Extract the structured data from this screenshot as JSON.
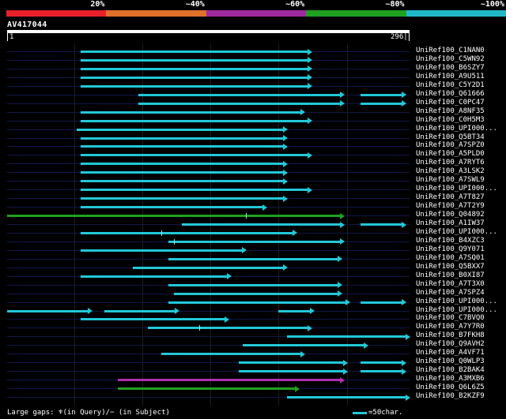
{
  "identity_scale": {
    "labels": [
      "20%",
      "~40%",
      "~60%",
      "~80%",
      "~100%"
    ],
    "colors": [
      "#e8202a",
      "#e0702a",
      "#a02aa0",
      "#20a020",
      "#20b8c8"
    ]
  },
  "query": {
    "name": "AV417044",
    "start_label": "1",
    "end_label": "296|"
  },
  "length_scale": {
    "min": 1,
    "max": 296
  },
  "hits": [
    {
      "name": "UniRef100_C1NAN0",
      "color": "cyan",
      "segments": [
        [
          55,
          224
        ]
      ],
      "ticks": []
    },
    {
      "name": "UniRef100_C5WN92",
      "color": "cyan",
      "segments": [
        [
          55,
          224
        ]
      ],
      "ticks": []
    },
    {
      "name": "UniRef100_B6SZY7",
      "color": "cyan",
      "segments": [
        [
          55,
          224
        ]
      ],
      "ticks": []
    },
    {
      "name": "UniRef100_A9U511",
      "color": "cyan",
      "segments": [
        [
          55,
          224
        ]
      ],
      "ticks": []
    },
    {
      "name": "UniRef100_C5Y2D1",
      "color": "cyan",
      "segments": [
        [
          55,
          224
        ]
      ],
      "ticks": []
    },
    {
      "name": "UniRef100_Q61666",
      "color": "cyan",
      "segments": [
        [
          97,
          248
        ],
        [
          260,
          293
        ]
      ],
      "ticks": []
    },
    {
      "name": "UniRef100_C0PC47",
      "color": "cyan",
      "segments": [
        [
          97,
          248
        ],
        [
          260,
          293
        ]
      ],
      "ticks": []
    },
    {
      "name": "UniRef100_A8NF35",
      "color": "cyan",
      "segments": [
        [
          55,
          219
        ]
      ],
      "ticks": []
    },
    {
      "name": "UniRef100_C0H5M3",
      "color": "cyan",
      "segments": [
        [
          55,
          224
        ]
      ],
      "ticks": []
    },
    {
      "name": "UniRef100_UPI000...",
      "color": "cyan",
      "segments": [
        [
          52,
          206
        ]
      ],
      "ticks": []
    },
    {
      "name": "UniRef100_Q5BT34",
      "color": "cyan",
      "segments": [
        [
          55,
          206
        ]
      ],
      "ticks": []
    },
    {
      "name": "UniRef100_A7SPZ0",
      "color": "cyan",
      "segments": [
        [
          55,
          206
        ]
      ],
      "ticks": []
    },
    {
      "name": "UniRef100_A5PLD0",
      "color": "cyan",
      "segments": [
        [
          55,
          224
        ]
      ],
      "ticks": []
    },
    {
      "name": "UniRef100_A7RYT6",
      "color": "cyan",
      "segments": [
        [
          55,
          206
        ]
      ],
      "ticks": []
    },
    {
      "name": "UniRef100_A3LSK2",
      "color": "cyan",
      "segments": [
        [
          55,
          206
        ]
      ],
      "ticks": []
    },
    {
      "name": "UniRef100_A7SWL9",
      "color": "cyan",
      "segments": [
        [
          55,
          206
        ]
      ],
      "ticks": []
    },
    {
      "name": "UniRef100_UPI000...",
      "color": "cyan",
      "segments": [
        [
          55,
          224
        ]
      ],
      "ticks": []
    },
    {
      "name": "UniRef100_A7T827",
      "color": "cyan",
      "segments": [
        [
          55,
          206
        ]
      ],
      "ticks": []
    },
    {
      "name": "UniRef100_A7T2Y9",
      "color": "cyan",
      "segments": [
        [
          55,
          191
        ]
      ],
      "ticks": []
    },
    {
      "name": "UniRef100_Q04892",
      "color": "green",
      "segments": [
        [
          1,
          248
        ]
      ],
      "ticks": [
        176
      ]
    },
    {
      "name": "UniRef100_A1IW37",
      "color": "cyan",
      "segments": [
        [
          129,
          248
        ],
        [
          260,
          293
        ]
      ],
      "ticks": []
    },
    {
      "name": "UniRef100_UPI000...",
      "color": "cyan",
      "segments": [
        [
          55,
          213
        ]
      ],
      "ticks": [
        114
      ]
    },
    {
      "name": "UniRef100_B4XZC3",
      "color": "cyan",
      "segments": [
        [
          119,
          248
        ]
      ],
      "ticks": [
        123
      ]
    },
    {
      "name": "UniRef100_Q9Y071",
      "color": "cyan",
      "segments": [
        [
          55,
          176
        ]
      ],
      "ticks": []
    },
    {
      "name": "UniRef100_A7SQ01",
      "color": "cyan",
      "segments": [
        [
          119,
          246
        ]
      ],
      "ticks": []
    },
    {
      "name": "UniRef100_Q5BXX7",
      "color": "cyan",
      "segments": [
        [
          93,
          206
        ]
      ],
      "ticks": []
    },
    {
      "name": "UniRef100_B0XI87",
      "color": "cyan",
      "segments": [
        [
          55,
          165
        ]
      ],
      "ticks": []
    },
    {
      "name": "UniRef100_A7T3X0",
      "color": "cyan",
      "segments": [
        [
          119,
          246
        ]
      ],
      "ticks": []
    },
    {
      "name": "UniRef100_A7SPZ4",
      "color": "cyan",
      "segments": [
        [
          123,
          246
        ]
      ],
      "ticks": []
    },
    {
      "name": "UniRef100_UPI000...",
      "color": "cyan",
      "segments": [
        [
          119,
          252
        ],
        [
          260,
          293
        ]
      ],
      "ticks": []
    },
    {
      "name": "UniRef100_UPI000...",
      "color": "cyan",
      "segments": [
        [
          1,
          63
        ],
        [
          72,
          127
        ],
        [
          200,
          226
        ]
      ],
      "ticks": []
    },
    {
      "name": "UniRef100_C7BVQ0",
      "color": "cyan",
      "segments": [
        [
          55,
          163
        ]
      ],
      "ticks": []
    },
    {
      "name": "UniRef100_A7Y7R0",
      "color": "cyan",
      "segments": [
        [
          104,
          224
        ]
      ],
      "ticks": [
        142
      ]
    },
    {
      "name": "UniRef100_B7FKH8",
      "color": "cyan",
      "segments": [
        [
          206,
          296
        ]
      ],
      "ticks": []
    },
    {
      "name": "UniRef100_Q9AVH2",
      "color": "cyan",
      "segments": [
        [
          174,
          265
        ]
      ],
      "ticks": []
    },
    {
      "name": "UniRef100_A4VF71",
      "color": "cyan",
      "segments": [
        [
          114,
          219
        ]
      ],
      "ticks": []
    },
    {
      "name": "UniRef100_Q0WLP3",
      "color": "cyan",
      "segments": [
        [
          171,
          250
        ],
        [
          260,
          293
        ]
      ],
      "ticks": []
    },
    {
      "name": "UniRef100_B2BAK4",
      "color": "cyan",
      "segments": [
        [
          171,
          250
        ],
        [
          260,
          293
        ]
      ],
      "ticks": []
    },
    {
      "name": "UniRef100_A3MXB6",
      "color": "purple",
      "segments": [
        [
          82,
          248
        ]
      ],
      "ticks": []
    },
    {
      "name": "UniRef100_Q6L6Z5",
      "color": "green",
      "segments": [
        [
          82,
          215
        ]
      ],
      "ticks": []
    },
    {
      "name": "UniRef100_B2KZF9",
      "color": "cyan",
      "segments": [
        [
          206,
          296
        ]
      ],
      "ticks": []
    }
  ],
  "hit_colors": {
    "cyan": "#21c8d8",
    "green": "#20a020",
    "purple": "#b030b0"
  },
  "footer": {
    "gaps_text": "Large gaps: ♆(in Query)/− (in Subject)",
    "legend_text": "=50char."
  }
}
